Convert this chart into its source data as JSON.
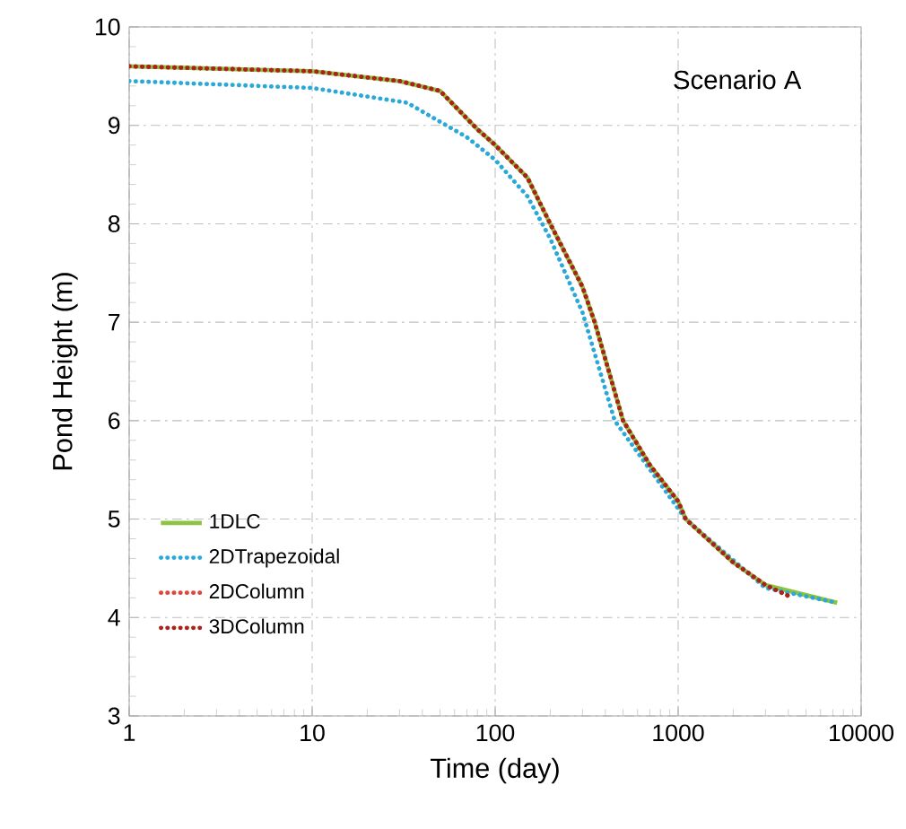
{
  "chart_data": {
    "type": "line",
    "xlabel": "Time (day)",
    "ylabel": "Pond Height (m)",
    "annotations": [
      "Scenario A"
    ],
    "log": "x",
    "grid": true,
    "legend": "bottom left",
    "xlim": [
      1,
      10000
    ],
    "ylim": [
      3,
      10
    ],
    "xticks": [
      1,
      10,
      100,
      1000,
      10000
    ],
    "yticks": [
      3,
      4,
      5,
      6,
      7,
      8,
      9,
      10
    ],
    "series": [
      {
        "name": "1DLC",
        "color": "#8cc43f",
        "line_style": "solid",
        "x": [
          1,
          10,
          30,
          50,
          80,
          100,
          150,
          200,
          300,
          350,
          500,
          700,
          1000,
          1100,
          2000,
          3000,
          7400
        ],
        "values": [
          9.6,
          9.55,
          9.45,
          9.35,
          8.96,
          8.8,
          8.47,
          8.0,
          7.36,
          7.0,
          6.0,
          5.55,
          5.18,
          5.0,
          4.56,
          4.33,
          4.15
        ]
      },
      {
        "name": "2DTrapezoidal",
        "color": "#2aa9d9",
        "line_style": "dotted",
        "x": [
          1,
          10,
          33,
          70,
          100,
          150,
          200,
          300,
          450,
          1100,
          3000,
          7400
        ],
        "values": [
          9.45,
          9.38,
          9.23,
          8.88,
          8.65,
          8.28,
          7.85,
          7.1,
          6.0,
          5.0,
          4.3,
          4.15
        ]
      },
      {
        "name": "2DColumn",
        "color": "#e0453a",
        "line_style": "dotted",
        "x": [
          1,
          10,
          30,
          50,
          80,
          100,
          150,
          200,
          300,
          350,
          500,
          700,
          1000,
          1100,
          2000,
          3000,
          4000
        ],
        "values": [
          9.6,
          9.55,
          9.45,
          9.35,
          8.96,
          8.8,
          8.47,
          8.0,
          7.36,
          7.0,
          6.0,
          5.55,
          5.18,
          5.0,
          4.56,
          4.33,
          4.22
        ]
      },
      {
        "name": "3DColumn",
        "color": "#a8231c",
        "line_style": "dotted",
        "x": [
          1,
          10,
          30,
          50,
          80,
          100,
          150,
          200,
          300,
          350,
          500,
          700,
          1000,
          1100,
          2000,
          3000,
          4000
        ],
        "values": [
          9.6,
          9.55,
          9.45,
          9.35,
          8.96,
          8.8,
          8.47,
          8.0,
          7.36,
          7.0,
          6.0,
          5.55,
          5.18,
          5.0,
          4.56,
          4.33,
          4.22
        ]
      }
    ]
  }
}
